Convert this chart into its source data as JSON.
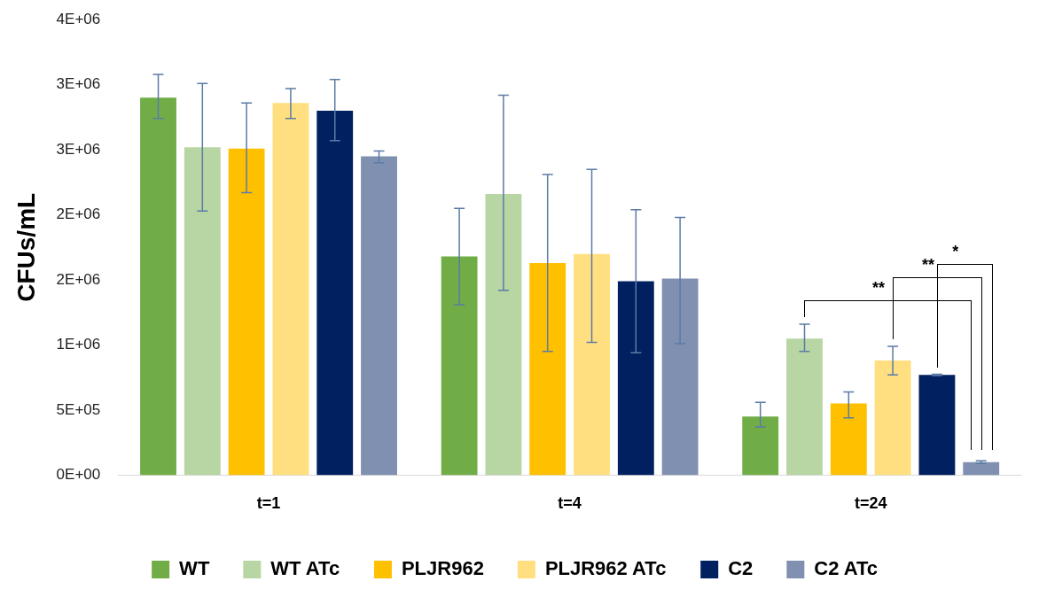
{
  "chart_data": {
    "type": "bar",
    "ylabel": "CFUs/mL",
    "categories": [
      "t=1",
      "t=4",
      "t=24"
    ],
    "series": [
      {
        "name": "WT",
        "color": "#70ad47",
        "values": [
          2900000,
          1680000,
          450000
        ],
        "errors": [
          [
            2740000,
            3080000
          ],
          [
            1310000,
            2050000
          ],
          [
            370000,
            560000
          ]
        ]
      },
      {
        "name": "WT ATc",
        "color": "#b8d6a3",
        "values": [
          2520000,
          2160000,
          1050000
        ],
        "errors": [
          [
            2030000,
            3010000
          ],
          [
            1420000,
            2920000
          ],
          [
            950000,
            1160000
          ]
        ]
      },
      {
        "name": "PLJR962",
        "color": "#ffc000",
        "values": [
          2510000,
          1630000,
          550000
        ],
        "errors": [
          [
            2170000,
            2860000
          ],
          [
            950000,
            2310000
          ],
          [
            440000,
            640000
          ]
        ]
      },
      {
        "name": "PLJR962 ATc",
        "color": "#ffdf80",
        "values": [
          2860000,
          1700000,
          880000
        ],
        "errors": [
          [
            2740000,
            2970000
          ],
          [
            1020000,
            2350000
          ],
          [
            770000,
            990000
          ]
        ]
      },
      {
        "name": "C2",
        "color": "#002060",
        "values": [
          2800000,
          1490000,
          770000
        ],
        "errors": [
          [
            2570000,
            3040000
          ],
          [
            940000,
            2040000
          ],
          [
            765000,
            775000
          ]
        ]
      },
      {
        "name": "C2 ATc",
        "color": "#8090b0",
        "values": [
          2450000,
          1510000,
          100000
        ],
        "errors": [
          [
            2400000,
            2490000
          ],
          [
            1010000,
            1980000
          ],
          [
            90000,
            110000
          ]
        ]
      }
    ],
    "ylim": [
      0,
      3500000
    ],
    "yticks": [
      {
        "value": 0,
        "label": "0E+00"
      },
      {
        "value": 500000,
        "label": "5E+05"
      },
      {
        "value": 1000000,
        "label": "1E+06"
      },
      {
        "value": 1500000,
        "label": "2E+06"
      },
      {
        "value": 2000000,
        "label": "2E+06"
      },
      {
        "value": 2500000,
        "label": "3E+06"
      },
      {
        "value": 3000000,
        "label": "3E+06"
      },
      {
        "value": 3500000,
        "label": "4E+06"
      }
    ],
    "annotations": [
      "**",
      "**",
      "*"
    ],
    "legend": "bottom"
  }
}
